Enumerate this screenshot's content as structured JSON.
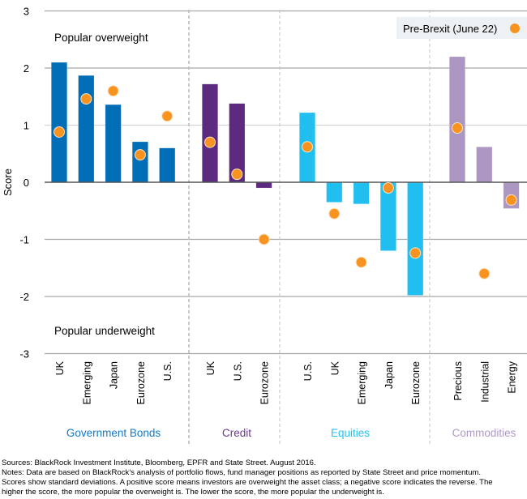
{
  "chart_data": {
    "type": "bar",
    "title": "",
    "xlabel": "",
    "ylabel": "Score",
    "ylim": [
      -3,
      3
    ],
    "yticks": [
      3,
      2,
      1,
      0,
      -1,
      -2,
      -3
    ],
    "grid": true,
    "annotations": {
      "top": "Popular overweight",
      "bottom": "Popular underweight"
    },
    "legend": {
      "label": "Pre-Brexit (June 22)",
      "position": "top-right"
    },
    "colors": {
      "dot": "#F7931E",
      "legend_bg": "#EEF1F4"
    },
    "groups": [
      {
        "name": "Government Bonds",
        "color": "#006DB6",
        "label_color": "#1479C4",
        "categories": [
          "UK",
          "Emerging",
          "Japan",
          "Eurozone",
          "U.S."
        ],
        "values": [
          2.1,
          1.87,
          1.36,
          0.71,
          0.6
        ],
        "pre_brexit": [
          0.88,
          1.46,
          1.6,
          0.48,
          1.16
        ]
      },
      {
        "name": "Credit",
        "color": "#5C2A7E",
        "label_color": "#6A3A8E",
        "categories": [
          "UK",
          "U.S.",
          "Eurozone"
        ],
        "values": [
          1.72,
          1.38,
          -0.1
        ],
        "pre_brexit": [
          0.7,
          0.14,
          -1.0
        ]
      },
      {
        "name": "Equities",
        "color": "#20BFEF",
        "label_color": "#2CC0EC",
        "categories": [
          "U.S.",
          "UK",
          "Emerging",
          "Japan",
          "Eurozone"
        ],
        "values": [
          1.22,
          -0.35,
          -0.38,
          -1.2,
          -1.98
        ],
        "pre_brexit": [
          0.62,
          -0.55,
          -1.4,
          -0.1,
          -1.24
        ]
      },
      {
        "name": "Commodities",
        "color": "#AC97C2",
        "label_color": "#AE99C6",
        "categories": [
          "Precious",
          "Industrial",
          "Energy"
        ],
        "values": [
          2.2,
          0.62,
          -0.46
        ],
        "pre_brexit": [
          0.95,
          -1.6,
          -0.31
        ]
      }
    ]
  },
  "notes": {
    "sources": "Sources: BlackRock Investment Institute, Bloomberg, EPFR and State Street. August 2016.",
    "line1": "Notes:  Data are based on BlackRock's analysis of portfolio flows, fund manager positions as reported by State Street and price momentum.",
    "line2": "Scores show standard deviations. A positive score means investors are overweight the asset class; a negative score indicates the reverse. The",
    "line3": "higher the score, the more popular the overweight is. The lower the score, the more popular the underweight is."
  }
}
